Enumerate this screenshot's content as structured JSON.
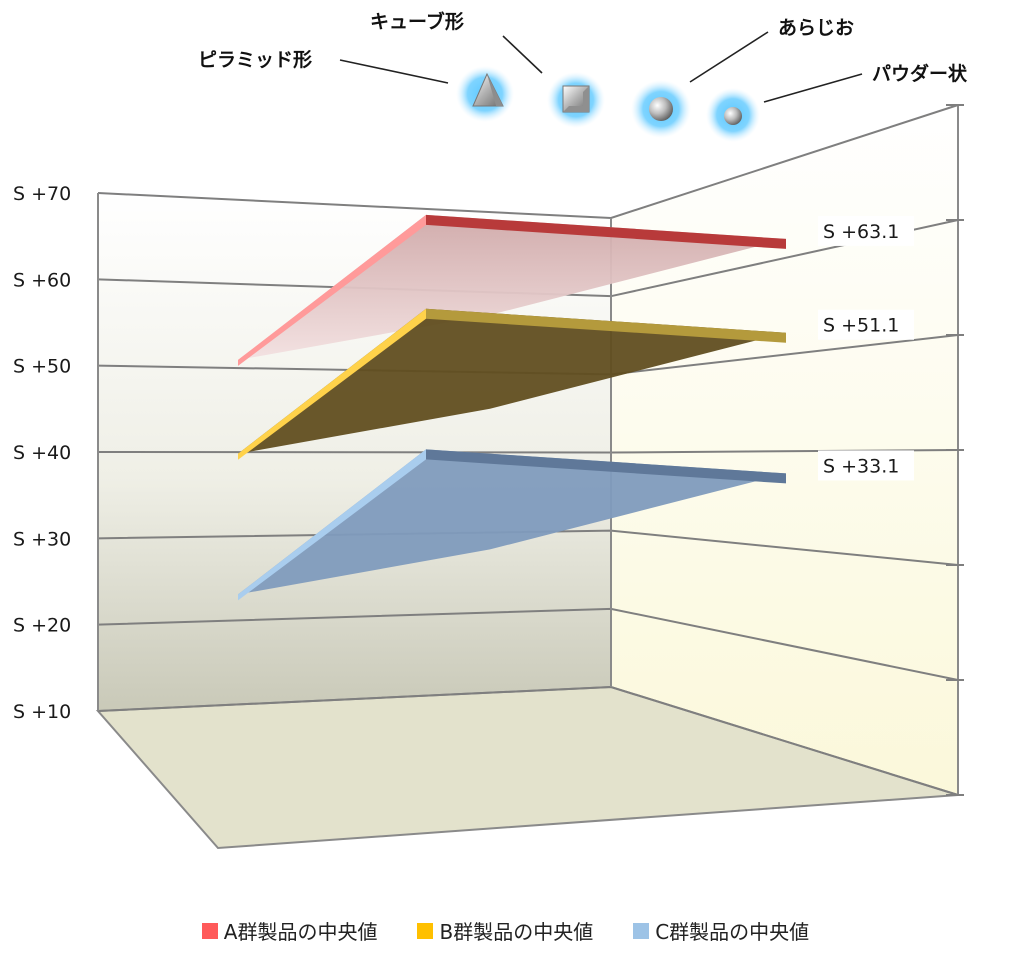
{
  "chart_data": {
    "type": "3d-plane",
    "y_ticks": [
      "S +10",
      "S +20",
      "S +30",
      "S +40",
      "S +50",
      "S +60",
      "S +70"
    ],
    "ylim": [
      10,
      70
    ],
    "series": [
      {
        "name": "A群製品の中央値",
        "value": 63.1,
        "value_label": "S +63.1",
        "color": "#ff5a5a"
      },
      {
        "name": "B群製品の中央値",
        "value": 51.1,
        "value_label": "S +51.1",
        "color": "#ffc000"
      },
      {
        "name": "C群製品の中央値",
        "value": 33.1,
        "value_label": "S +33.1",
        "color": "#9dc3e6"
      }
    ],
    "shape_legend": [
      {
        "label": "ピラミッド形",
        "icon": "pyramid-icon"
      },
      {
        "label": "キューブ形",
        "icon": "cube-icon"
      },
      {
        "label": "あらじお",
        "icon": "large-sphere-icon"
      },
      {
        "label": "パウダー状",
        "icon": "small-sphere-icon"
      }
    ],
    "legend_position": "bottom"
  }
}
